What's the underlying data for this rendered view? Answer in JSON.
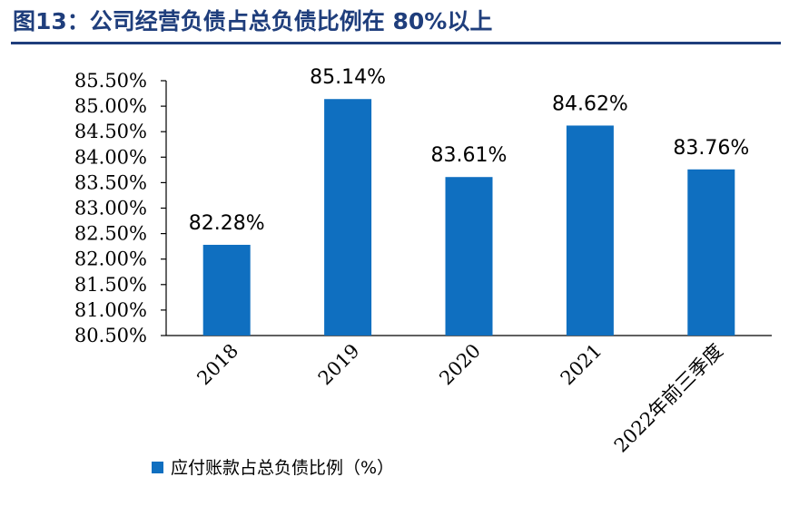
{
  "title": "图13：公司经营负债占总负债比例在 80%以上",
  "colors": {
    "bar": "#0f6fc0",
    "title": "#1f3e7c",
    "axis": "#000000"
  },
  "chart_data": {
    "type": "bar",
    "categories": [
      "2018",
      "2019",
      "2020",
      "2021",
      "2022年前三季度"
    ],
    "series": [
      {
        "name": "应付账款占总负债比例（%）",
        "values": [
          82.28,
          85.14,
          83.61,
          84.62,
          83.76
        ],
        "labels": [
          "82.28%",
          "85.14%",
          "83.61%",
          "84.62%",
          "83.76%"
        ]
      }
    ],
    "ylim": [
      80.5,
      85.5
    ],
    "ytick_labels": [
      "80.50%",
      "81.00%",
      "81.50%",
      "82.00%",
      "82.50%",
      "83.00%",
      "83.50%",
      "84.00%",
      "84.50%",
      "85.00%",
      "85.50%"
    ],
    "legend_position": "bottom-left",
    "grid": false
  }
}
